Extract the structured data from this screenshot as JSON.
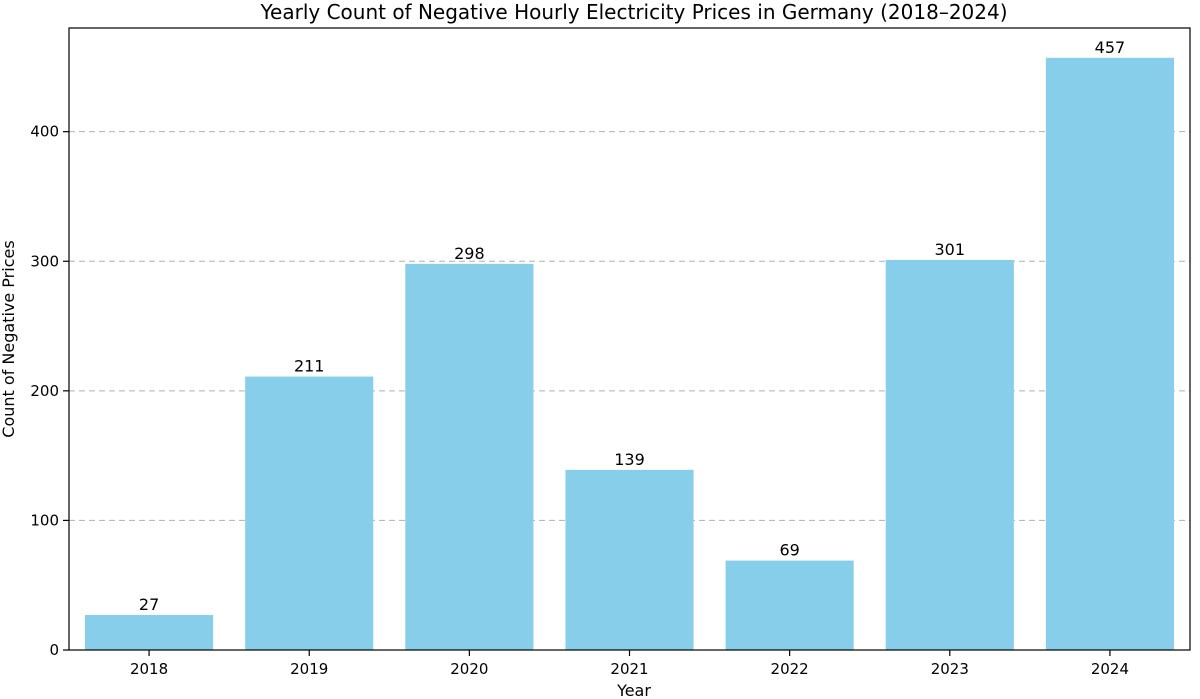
{
  "chart_data": {
    "type": "bar",
    "title": "Yearly Count of Negative Hourly Electricity Prices in Germany (2018–2024)",
    "xlabel": "Year",
    "ylabel": "Count of Negative Prices",
    "categories": [
      "2018",
      "2019",
      "2020",
      "2021",
      "2022",
      "2023",
      "2024"
    ],
    "values": [
      27,
      211,
      298,
      139,
      69,
      301,
      457
    ],
    "ylim": [
      0,
      480
    ],
    "yticks": [
      0,
      100,
      200,
      300,
      400
    ],
    "grid": "y-dashed",
    "bar_color": "#87ceeb"
  }
}
